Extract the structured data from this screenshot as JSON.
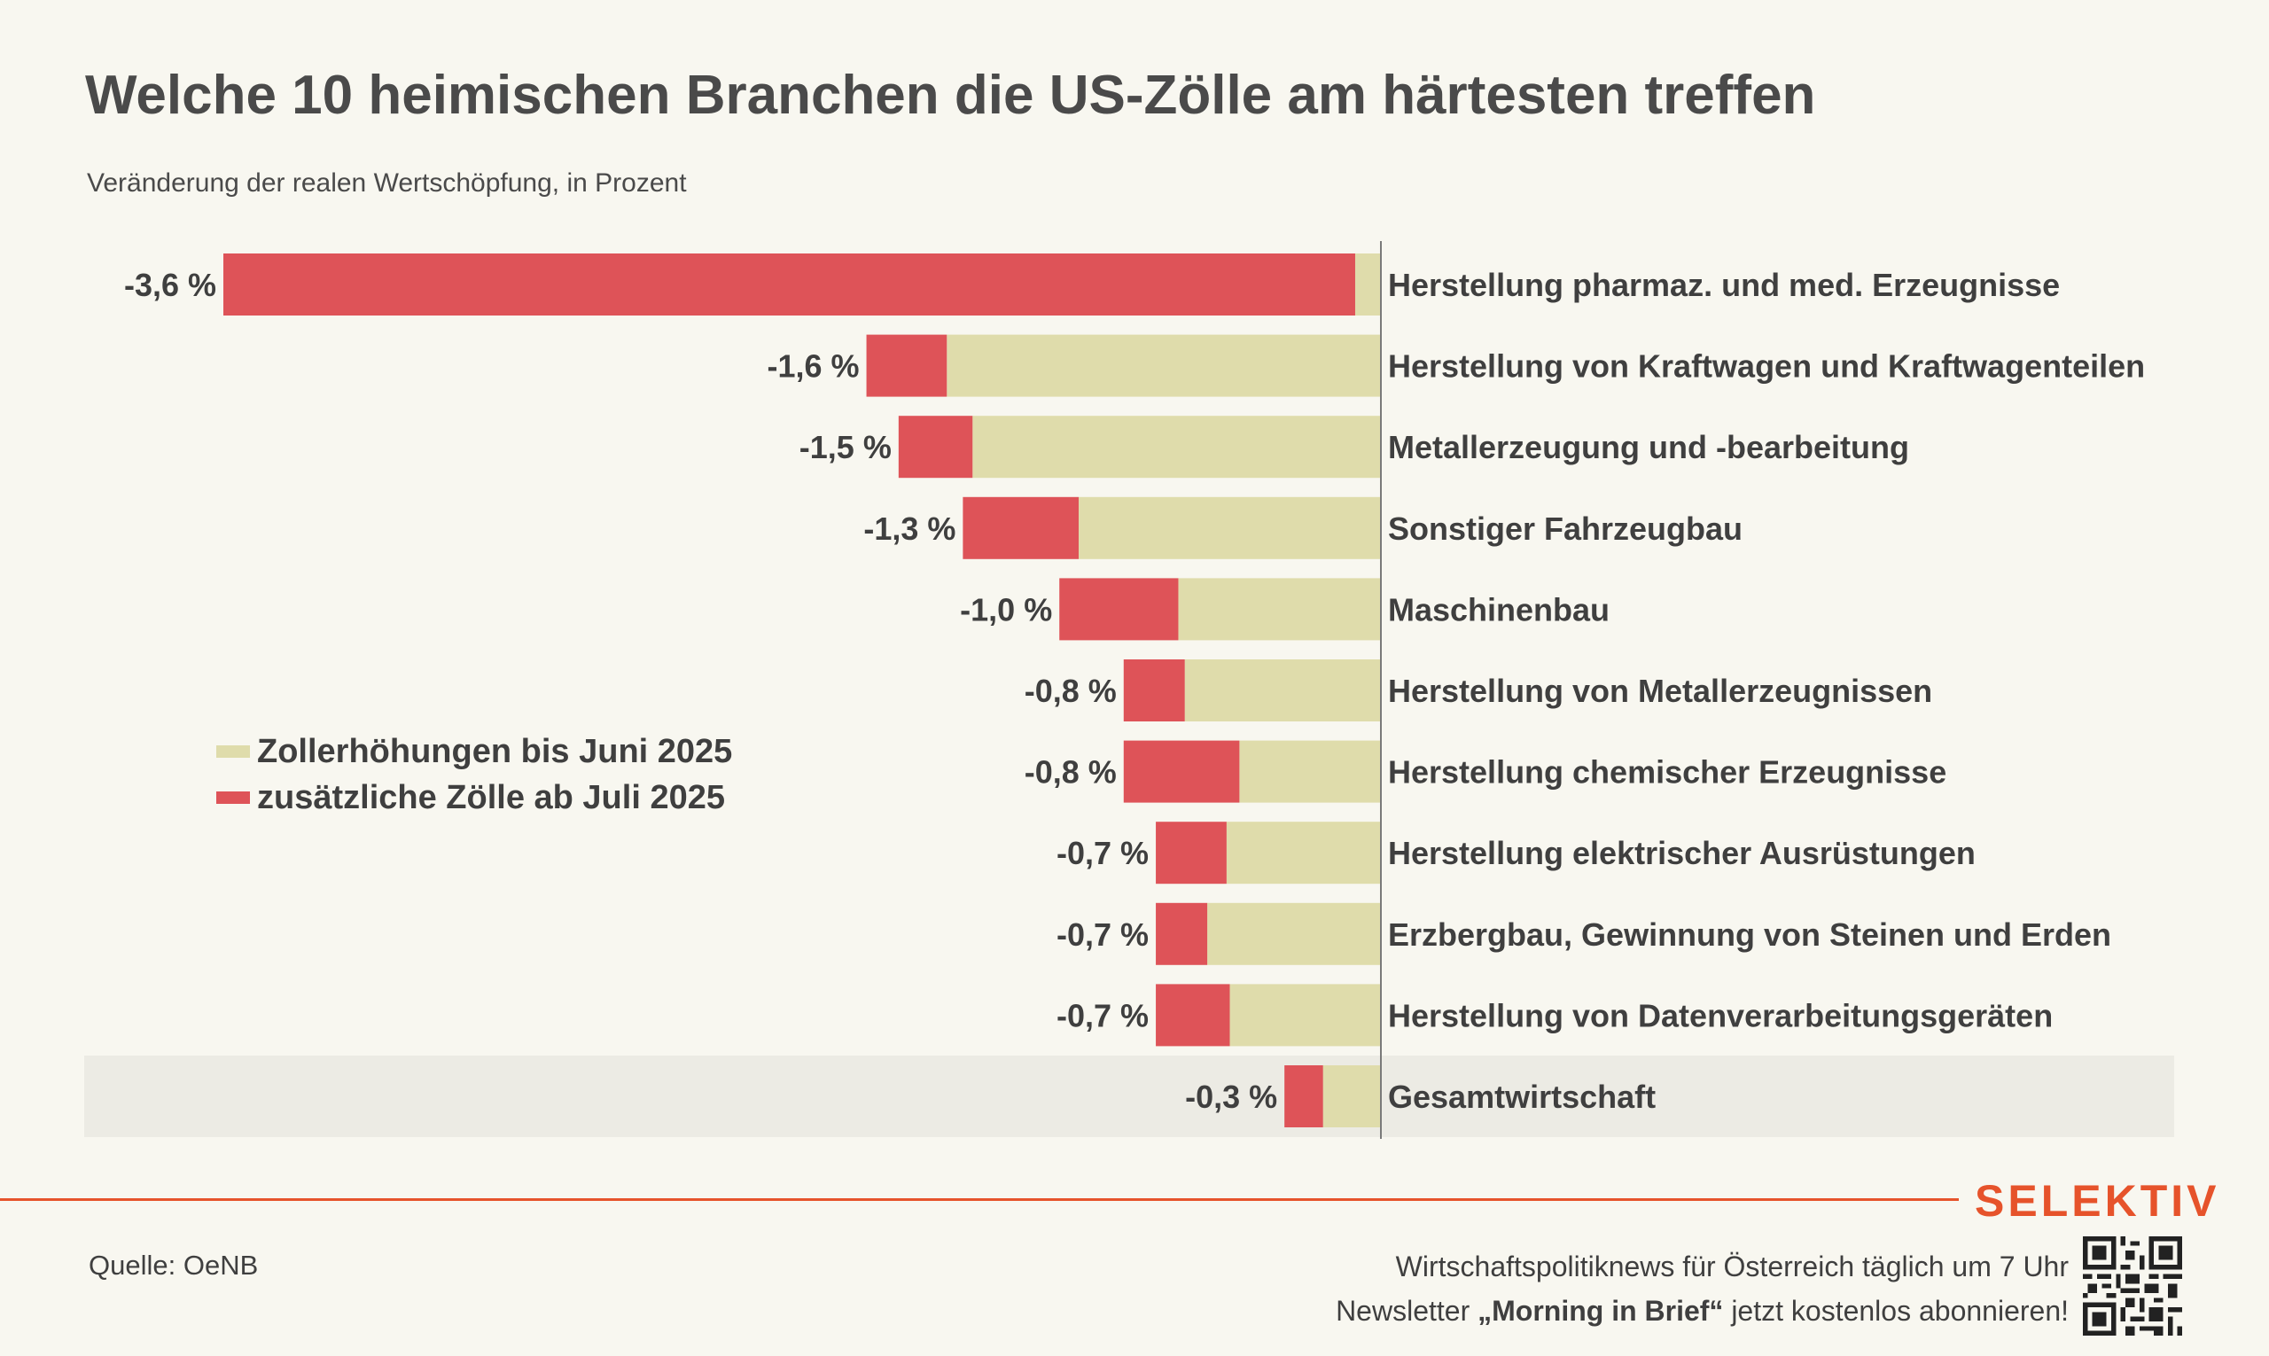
{
  "header": {
    "title": "Welche 10 heimischen Branchen die US-Zölle am härtesten treffen",
    "subtitle": "Veränderung der realen Wertschöpfung, in Prozent"
  },
  "legend": {
    "items": [
      {
        "label": "Zollerhöhungen bis Juni 2025",
        "color": "#dfdcab"
      },
      {
        "label": "zusätzliche Zölle ab Juli 2025",
        "color": "#de5358"
      }
    ]
  },
  "chart_data": {
    "type": "bar",
    "orientation": "horizontal",
    "stacked": true,
    "categories": [
      "Herstellung pharmaz. und med. Erzeugnisse",
      "Herstellung von Kraftwagen und Kraftwagenteilen",
      "Metallerzeugung und -bearbeitung",
      "Sonstiger Fahrzeugbau",
      "Maschinenbau",
      "Herstellung von Metallerzeugnissen",
      "Herstellung chemischer Erzeugnisse",
      "Herstellung elektrischer Ausrüstungen",
      "Erzbergbau, Gewinnung von Steinen und Erden",
      "Herstellung von Datenverarbeitungsgeräten",
      "Gesamtwirtschaft"
    ],
    "total_labels": [
      "-3,6 %",
      "-1,6 %",
      "-1,5 %",
      "-1,3 %",
      "-1,0 %",
      "-0,8 %",
      "-0,8 %",
      "-0,7 %",
      "-0,7 %",
      "-0,7 %",
      "-0,3 %"
    ],
    "series": [
      {
        "name": "Zollerhöhungen bis Juni 2025",
        "color": "#dfdcab",
        "values": [
          -0.08,
          -1.35,
          -1.27,
          -0.94,
          -0.63,
          -0.61,
          -0.44,
          -0.48,
          -0.54,
          -0.47,
          -0.18
        ]
      },
      {
        "name": "zusätzliche Zölle ab Juli 2025",
        "color": "#de5358",
        "values": [
          -3.52,
          -0.25,
          -0.23,
          -0.36,
          -0.37,
          -0.19,
          -0.36,
          -0.22,
          -0.16,
          -0.23,
          -0.12
        ]
      }
    ],
    "xlim": [
      -3.6,
      0
    ],
    "highlight_category": "Gesamtwirtschaft",
    "highlight_color": "#ecebe4"
  },
  "footer": {
    "brand": "SELEKTIV",
    "source": "Quelle: OeNB",
    "promo_line1": "Wirtschaftspolitiknews für Österreich täglich um 7 Uhr",
    "promo_line2_pre": "Newsletter ",
    "promo_line2_bold": "„Morning in Brief“",
    "promo_line2_post": " jetzt kostenlos abonnieren!"
  }
}
